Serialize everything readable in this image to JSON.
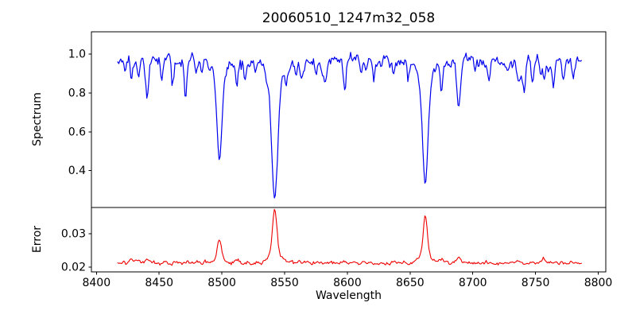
{
  "figure": {
    "title": "20060510_1247m32_058"
  },
  "chart_data": [
    {
      "type": "line",
      "panel": "top",
      "title": "20060510_1247m32_058",
      "ylabel": "Spectrum",
      "xlabel": "",
      "xlim": [
        8396,
        8806
      ],
      "ylim": [
        0.21,
        1.115
      ],
      "yticks": [
        1.0,
        0.8,
        0.6,
        0.4
      ],
      "ytick_labels": [
        "1.0",
        "0.8",
        "0.6",
        "0.4"
      ],
      "grid": false,
      "legend": null,
      "line_color": "#0000ee",
      "line_width": 1.2,
      "x_start": 8417,
      "x_end": 8787,
      "x_step": 0.8,
      "continuum_level": 0.972,
      "continuum_slope": -3e-05,
      "noise_sigma": 0.013,
      "absorption_lines": [
        {
          "center": 8423.0,
          "depth": 0.055,
          "width": 0.9
        },
        {
          "center": 8428.0,
          "depth": 0.11,
          "width": 1.0
        },
        {
          "center": 8433.5,
          "depth": 0.1,
          "width": 1.0
        },
        {
          "center": 8440.5,
          "depth": 0.18,
          "width": 1.2
        },
        {
          "center": 8452.0,
          "depth": 0.085,
          "width": 0.9
        },
        {
          "center": 8461.0,
          "depth": 0.13,
          "width": 1.0
        },
        {
          "center": 8471.0,
          "depth": 0.14,
          "width": 1.0
        },
        {
          "center": 8484.0,
          "depth": 0.07,
          "width": 0.9
        },
        {
          "center": 8498.0,
          "depth": 0.4,
          "width": 1.9
        },
        {
          "center": 8498.0,
          "depth": 0.11,
          "width": 4.5
        },
        {
          "center": 8512.0,
          "depth": 0.13,
          "width": 1.0
        },
        {
          "center": 8518.5,
          "depth": 0.075,
          "width": 0.9
        },
        {
          "center": 8527.0,
          "depth": 0.06,
          "width": 0.8
        },
        {
          "center": 8542.1,
          "depth": 0.55,
          "width": 2.2
        },
        {
          "center": 8542.1,
          "depth": 0.16,
          "width": 5.5
        },
        {
          "center": 8559.0,
          "depth": 0.06,
          "width": 0.9
        },
        {
          "center": 8575.0,
          "depth": 0.07,
          "width": 0.9
        },
        {
          "center": 8582.0,
          "depth": 0.09,
          "width": 1.0
        },
        {
          "center": 8598.0,
          "depth": 0.11,
          "width": 1.0
        },
        {
          "center": 8611.0,
          "depth": 0.06,
          "width": 0.9
        },
        {
          "center": 8621.0,
          "depth": 0.09,
          "width": 0.9
        },
        {
          "center": 8637.0,
          "depth": 0.06,
          "width": 0.8
        },
        {
          "center": 8648.0,
          "depth": 0.08,
          "width": 0.9
        },
        {
          "center": 8662.1,
          "depth": 0.5,
          "width": 2.0
        },
        {
          "center": 8662.1,
          "depth": 0.14,
          "width": 5.0
        },
        {
          "center": 8675.0,
          "depth": 0.15,
          "width": 1.0
        },
        {
          "center": 8688.6,
          "depth": 0.225,
          "width": 1.4
        },
        {
          "center": 8702.0,
          "depth": 0.06,
          "width": 0.8
        },
        {
          "center": 8713.0,
          "depth": 0.09,
          "width": 1.0
        },
        {
          "center": 8728.0,
          "depth": 0.06,
          "width": 0.8
        },
        {
          "center": 8736.0,
          "depth": 0.1,
          "width": 1.0
        },
        {
          "center": 8747.0,
          "depth": 0.06,
          "width": 0.8
        },
        {
          "center": 8757.0,
          "depth": 0.09,
          "width": 0.9
        },
        {
          "center": 8764.0,
          "depth": 0.07,
          "width": 0.9
        },
        {
          "center": 8772.0,
          "depth": 0.08,
          "width": 0.9
        },
        {
          "center": 8780.0,
          "depth": 0.05,
          "width": 0.8
        }
      ]
    },
    {
      "type": "line",
      "panel": "bottom",
      "ylabel": "Error",
      "xlabel": "Wavelength",
      "xlim": [
        8396,
        8806
      ],
      "ylim": [
        0.0185,
        0.038
      ],
      "yticks": [
        0.03,
        0.02
      ],
      "ytick_labels": [
        "0.03",
        "0.02"
      ],
      "xticks": [
        8400,
        8450,
        8500,
        8550,
        8600,
        8650,
        8700,
        8750,
        8800
      ],
      "xtick_labels": [
        "8400",
        "8450",
        "8500",
        "8550",
        "8600",
        "8650",
        "8700",
        "8750",
        "8800"
      ],
      "grid": false,
      "legend": null,
      "line_color": "#ee0000",
      "line_width": 1.1,
      "x_start": 8417,
      "x_end": 8787,
      "x_step": 0.8,
      "baseline": 0.0212,
      "noise_sigma": 0.00025,
      "error_peaks": [
        {
          "center": 8428.0,
          "height": 0.0012,
          "width": 1.2
        },
        {
          "center": 8433.5,
          "height": 0.001,
          "width": 1.1
        },
        {
          "center": 8440.5,
          "height": 0.0011,
          "width": 1.2
        },
        {
          "center": 8498.0,
          "height": 0.006,
          "width": 1.6
        },
        {
          "center": 8498.0,
          "height": 0.0012,
          "width": 4.0
        },
        {
          "center": 8512.0,
          "height": 0.0008,
          "width": 1.1
        },
        {
          "center": 8542.1,
          "height": 0.0128,
          "width": 1.7
        },
        {
          "center": 8542.1,
          "height": 0.0032,
          "width": 5.0
        },
        {
          "center": 8598.0,
          "height": 0.0007,
          "width": 1.0
        },
        {
          "center": 8662.1,
          "height": 0.0118,
          "width": 1.6
        },
        {
          "center": 8662.1,
          "height": 0.0028,
          "width": 4.5
        },
        {
          "center": 8675.0,
          "height": 0.0009,
          "width": 1.1
        },
        {
          "center": 8688.6,
          "height": 0.0022,
          "width": 1.4
        },
        {
          "center": 8736.0,
          "height": 0.0007,
          "width": 1.0
        },
        {
          "center": 8757.0,
          "height": 0.0007,
          "width": 1.0
        }
      ]
    }
  ]
}
